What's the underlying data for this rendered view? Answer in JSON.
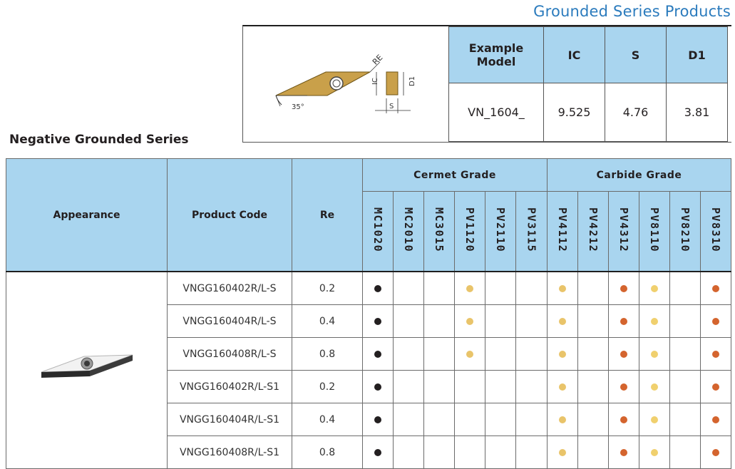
{
  "series_title": "Grounded Series Products",
  "section_title": "Negative Grounded Series",
  "diagram": {
    "labels": {
      "re": "RE",
      "ic": "IC",
      "d1": "D1",
      "s": "S",
      "angle": "35°"
    },
    "insert_color": "#c9a04a"
  },
  "example": {
    "headers": [
      "Example Model",
      "IC",
      "S",
      "D1"
    ],
    "values": [
      "VN_1604_",
      "9.525",
      "4.76",
      "3.81"
    ]
  },
  "table": {
    "headers": {
      "appearance": "Appearance",
      "product_code": "Product Code",
      "re": "Re",
      "cermet_group": "Cermet Grade",
      "carbide_group": "Carbide Grade"
    },
    "grades": [
      "MC1020",
      "MC2010",
      "MC3015",
      "PV1120",
      "PV2110",
      "PV3115",
      "PV4112",
      "PV4212",
      "PV4312",
      "PV8110",
      "PV8210",
      "PV8310"
    ],
    "dot_colors": {
      "black": "#231f20",
      "yellow": "#e9c46a",
      "orange": "#d4642e",
      "light": "#f0d06e"
    },
    "rows": [
      {
        "code": "VNGG160402R/L-S",
        "re": "0.2",
        "marks": [
          "black",
          "",
          "",
          "yellow",
          "",
          "",
          "yellow",
          "",
          "orange",
          "light",
          "",
          "orange"
        ]
      },
      {
        "code": "VNGG160404R/L-S",
        "re": "0.4",
        "marks": [
          "black",
          "",
          "",
          "yellow",
          "",
          "",
          "yellow",
          "",
          "orange",
          "light",
          "",
          "orange"
        ]
      },
      {
        "code": "VNGG160408R/L-S",
        "re": "0.8",
        "marks": [
          "black",
          "",
          "",
          "yellow",
          "",
          "",
          "yellow",
          "",
          "orange",
          "light",
          "",
          "orange"
        ]
      },
      {
        "code": "VNGG160402R/L-S1",
        "re": "0.2",
        "marks": [
          "black",
          "",
          "",
          "",
          "",
          "",
          "yellow",
          "",
          "orange",
          "light",
          "",
          "orange"
        ]
      },
      {
        "code": "VNGG160404R/L-S1",
        "re": "0.4",
        "marks": [
          "black",
          "",
          "",
          "",
          "",
          "",
          "yellow",
          "",
          "orange",
          "light",
          "",
          "orange"
        ]
      },
      {
        "code": "VNGG160408R/L-S1",
        "re": "0.8",
        "marks": [
          "black",
          "",
          "",
          "",
          "",
          "",
          "yellow",
          "",
          "orange",
          "light",
          "",
          "orange"
        ]
      }
    ]
  }
}
